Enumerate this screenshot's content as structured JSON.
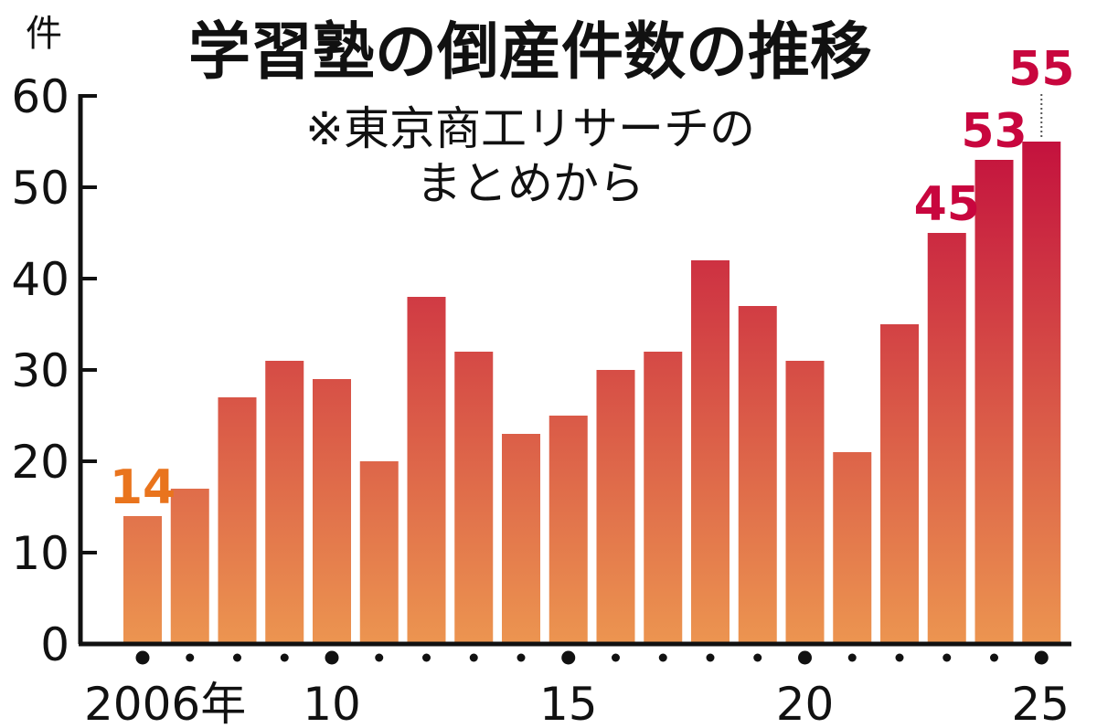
{
  "chart_data": {
    "type": "bar",
    "title": "学習塾の倒産件数の推移",
    "subtitle_lines": [
      "※東京商工リサーチの",
      "まとめから"
    ],
    "y_unit": "件",
    "ylim": [
      0,
      60
    ],
    "y_ticks": [
      0,
      10,
      20,
      30,
      40,
      50,
      60
    ],
    "x": [
      2006,
      2007,
      2008,
      2009,
      2010,
      2011,
      2012,
      2013,
      2014,
      2015,
      2016,
      2017,
      2018,
      2019,
      2020,
      2021,
      2022,
      2023,
      2024,
      2025
    ],
    "values": [
      14,
      17,
      27,
      31,
      29,
      20,
      38,
      32,
      23,
      25,
      30,
      32,
      42,
      37,
      31,
      21,
      35,
      45,
      53,
      55
    ],
    "x_tick_labels": [
      {
        "year": 2006,
        "label": "2006年"
      },
      {
        "year": 2010,
        "label": "10"
      },
      {
        "year": 2015,
        "label": "15"
      },
      {
        "year": 2020,
        "label": "20"
      },
      {
        "year": 2025,
        "label": "25"
      }
    ],
    "data_labels": [
      {
        "year": 2006,
        "value": "14"
      },
      {
        "year": 2023,
        "value": "45"
      },
      {
        "year": 2024,
        "value": "53"
      },
      {
        "year": 2025,
        "value": "55"
      }
    ],
    "colors": {
      "bar_top": "#c0063c",
      "bar_bottom": "#ec9550",
      "label_orange": "#e9741d",
      "label_red": "#c8063e",
      "axis": "#111111"
    },
    "grid": false,
    "legend": "none"
  }
}
